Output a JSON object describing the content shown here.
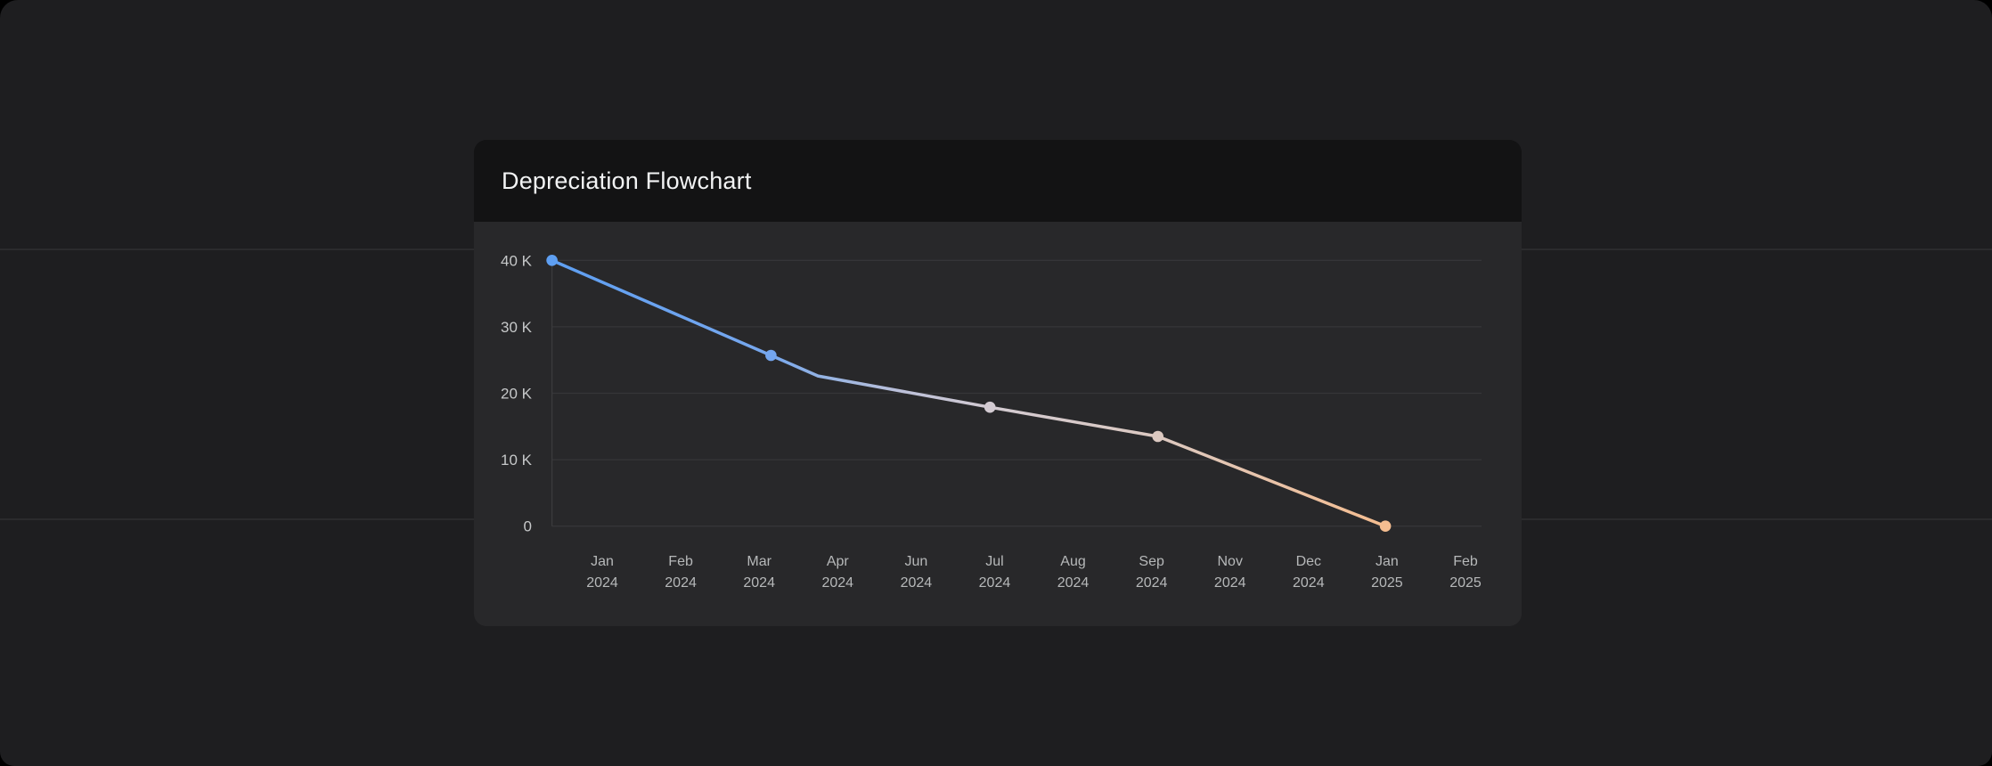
{
  "page": {
    "background_color": "#1e1e20",
    "divider_color": "#2b2b2d",
    "divider_y_positions": [
      279,
      582
    ]
  },
  "card": {
    "title": "Depreciation Flowchart",
    "title_color": "#f2f3f4",
    "header_bg": "#131314",
    "body_bg": "#28282a"
  },
  "chart_data": {
    "type": "line",
    "title": "Depreciation Flowchart",
    "xlabel": "",
    "ylabel": "",
    "ylim": [
      0,
      40000
    ],
    "grid": true,
    "legend": "none",
    "y_ticks": [
      {
        "label": "40 K",
        "value": 40000
      },
      {
        "label": "30 K",
        "value": 30000
      },
      {
        "label": "20 K",
        "value": 20000
      },
      {
        "label": "10 K",
        "value": 10000
      },
      {
        "label": "0",
        "value": 0
      }
    ],
    "x_ticks": [
      {
        "month": "Jan",
        "year": "2024"
      },
      {
        "month": "Feb",
        "year": "2024"
      },
      {
        "month": "Mar",
        "year": "2024"
      },
      {
        "month": "Apr",
        "year": "2024"
      },
      {
        "month": "Jun",
        "year": "2024"
      },
      {
        "month": "Jul",
        "year": "2024"
      },
      {
        "month": "Aug",
        "year": "2024"
      },
      {
        "month": "Sep",
        "year": "2024"
      },
      {
        "month": "Nov",
        "year": "2024"
      },
      {
        "month": "Dec",
        "year": "2024"
      },
      {
        "month": "Jan",
        "year": "2025"
      },
      {
        "month": "Feb",
        "year": "2025"
      }
    ],
    "x_axis_range_in_tick_units": [
      -0.64,
      11.2
    ],
    "series": [
      {
        "points": [
          {
            "t": -0.64,
            "value": 40000,
            "dot": true,
            "dot_color": "#5e9ff2"
          },
          {
            "t": 2.15,
            "value": 25700,
            "dot": true,
            "dot_color": "#74a6ef"
          },
          {
            "t": 2.75,
            "value": 22600,
            "dot": false
          },
          {
            "t": 4.94,
            "value": 17900,
            "dot": true,
            "dot_color": "#d3cbd2"
          },
          {
            "t": 7.08,
            "value": 13500,
            "dot": true,
            "dot_color": "#dcc9c1"
          },
          {
            "t": 9.98,
            "value": 0,
            "dot": true,
            "dot_color": "#f5bd90"
          }
        ],
        "line_width": 3.5,
        "dot_radius": 6.3,
        "gradient_stops": [
          [
            0,
            "#5e9ff2"
          ],
          [
            0.263,
            "#78a8ee"
          ],
          [
            0.33,
            "#97b4e2"
          ],
          [
            0.42,
            "#bcc0d9"
          ],
          [
            0.525,
            "#d3cbd2"
          ],
          [
            0.727,
            "#dcc9c1"
          ],
          [
            1,
            "#f5bd90"
          ]
        ]
      }
    ],
    "axis_color": "#3b3b3d",
    "grid_color": "#353538",
    "y_label_color": "#c6c8c9",
    "x_label_color": "#b6b8b9",
    "y_label_font_size": 17,
    "x_label_font_size": 16
  }
}
